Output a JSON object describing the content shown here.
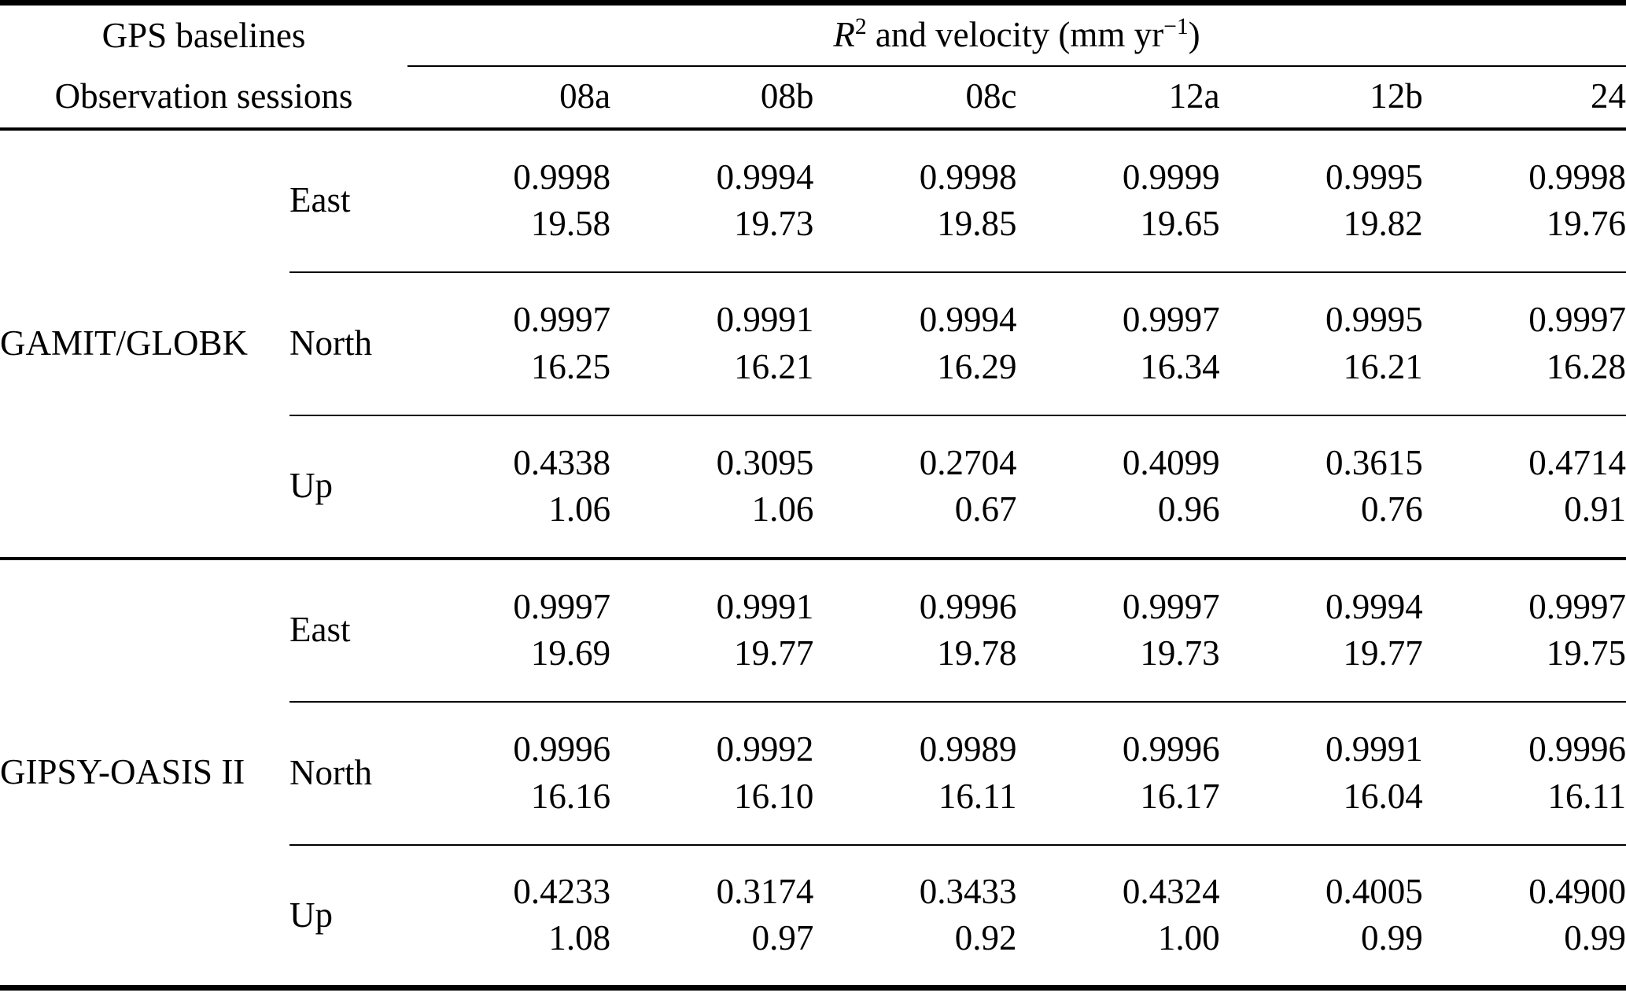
{
  "header": {
    "left_top": "GPS baselines",
    "left_bottom": "Observation sessions",
    "measure_title": {
      "r": "R",
      "r_sup": "2",
      "mid": " and velocity (mm yr",
      "sup": "−1",
      "close": ")"
    },
    "sessions": [
      "08a",
      "08b",
      "08c",
      "12a",
      "12b",
      "24"
    ]
  },
  "groups": [
    {
      "name": "GAMIT/GLOBK",
      "rows": [
        {
          "component": "East",
          "cells": [
            {
              "r2": "0.9998",
              "vel": "19.58"
            },
            {
              "r2": "0.9994",
              "vel": "19.73"
            },
            {
              "r2": "0.9998",
              "vel": "19.85"
            },
            {
              "r2": "0.9999",
              "vel": "19.65"
            },
            {
              "r2": "0.9995",
              "vel": "19.82"
            },
            {
              "r2": "0.9998",
              "vel": "19.76"
            }
          ]
        },
        {
          "component": "North",
          "cells": [
            {
              "r2": "0.9997",
              "vel": "16.25"
            },
            {
              "r2": "0.9991",
              "vel": "16.21"
            },
            {
              "r2": "0.9994",
              "vel": "16.29"
            },
            {
              "r2": "0.9997",
              "vel": "16.34"
            },
            {
              "r2": "0.9995",
              "vel": "16.21"
            },
            {
              "r2": "0.9997",
              "vel": "16.28"
            }
          ]
        },
        {
          "component": "Up",
          "cells": [
            {
              "r2": "0.4338",
              "vel": "1.06"
            },
            {
              "r2": "0.3095",
              "vel": "1.06"
            },
            {
              "r2": "0.2704",
              "vel": "0.67"
            },
            {
              "r2": "0.4099",
              "vel": "0.96"
            },
            {
              "r2": "0.3615",
              "vel": "0.76"
            },
            {
              "r2": "0.4714",
              "vel": "0.91"
            }
          ]
        }
      ]
    },
    {
      "name": "GIPSY-OASIS II",
      "rows": [
        {
          "component": "East",
          "cells": [
            {
              "r2": "0.9997",
              "vel": "19.69"
            },
            {
              "r2": "0.9991",
              "vel": "19.77"
            },
            {
              "r2": "0.9996",
              "vel": "19.78"
            },
            {
              "r2": "0.9997",
              "vel": "19.73"
            },
            {
              "r2": "0.9994",
              "vel": "19.77"
            },
            {
              "r2": "0.9997",
              "vel": "19.75"
            }
          ]
        },
        {
          "component": "North",
          "cells": [
            {
              "r2": "0.9996",
              "vel": "16.16"
            },
            {
              "r2": "0.9992",
              "vel": "16.10"
            },
            {
              "r2": "0.9989",
              "vel": "16.11"
            },
            {
              "r2": "0.9996",
              "vel": "16.17"
            },
            {
              "r2": "0.9991",
              "vel": "16.04"
            },
            {
              "r2": "0.9996",
              "vel": "16.11"
            }
          ]
        },
        {
          "component": "Up",
          "cells": [
            {
              "r2": "0.4233",
              "vel": "1.08"
            },
            {
              "r2": "0.3174",
              "vel": "0.97"
            },
            {
              "r2": "0.3433",
              "vel": "0.92"
            },
            {
              "r2": "0.4324",
              "vel": "1.00"
            },
            {
              "r2": "0.4005",
              "vel": "0.99"
            },
            {
              "r2": "0.4900",
              "vel": "0.99"
            }
          ]
        }
      ]
    }
  ]
}
